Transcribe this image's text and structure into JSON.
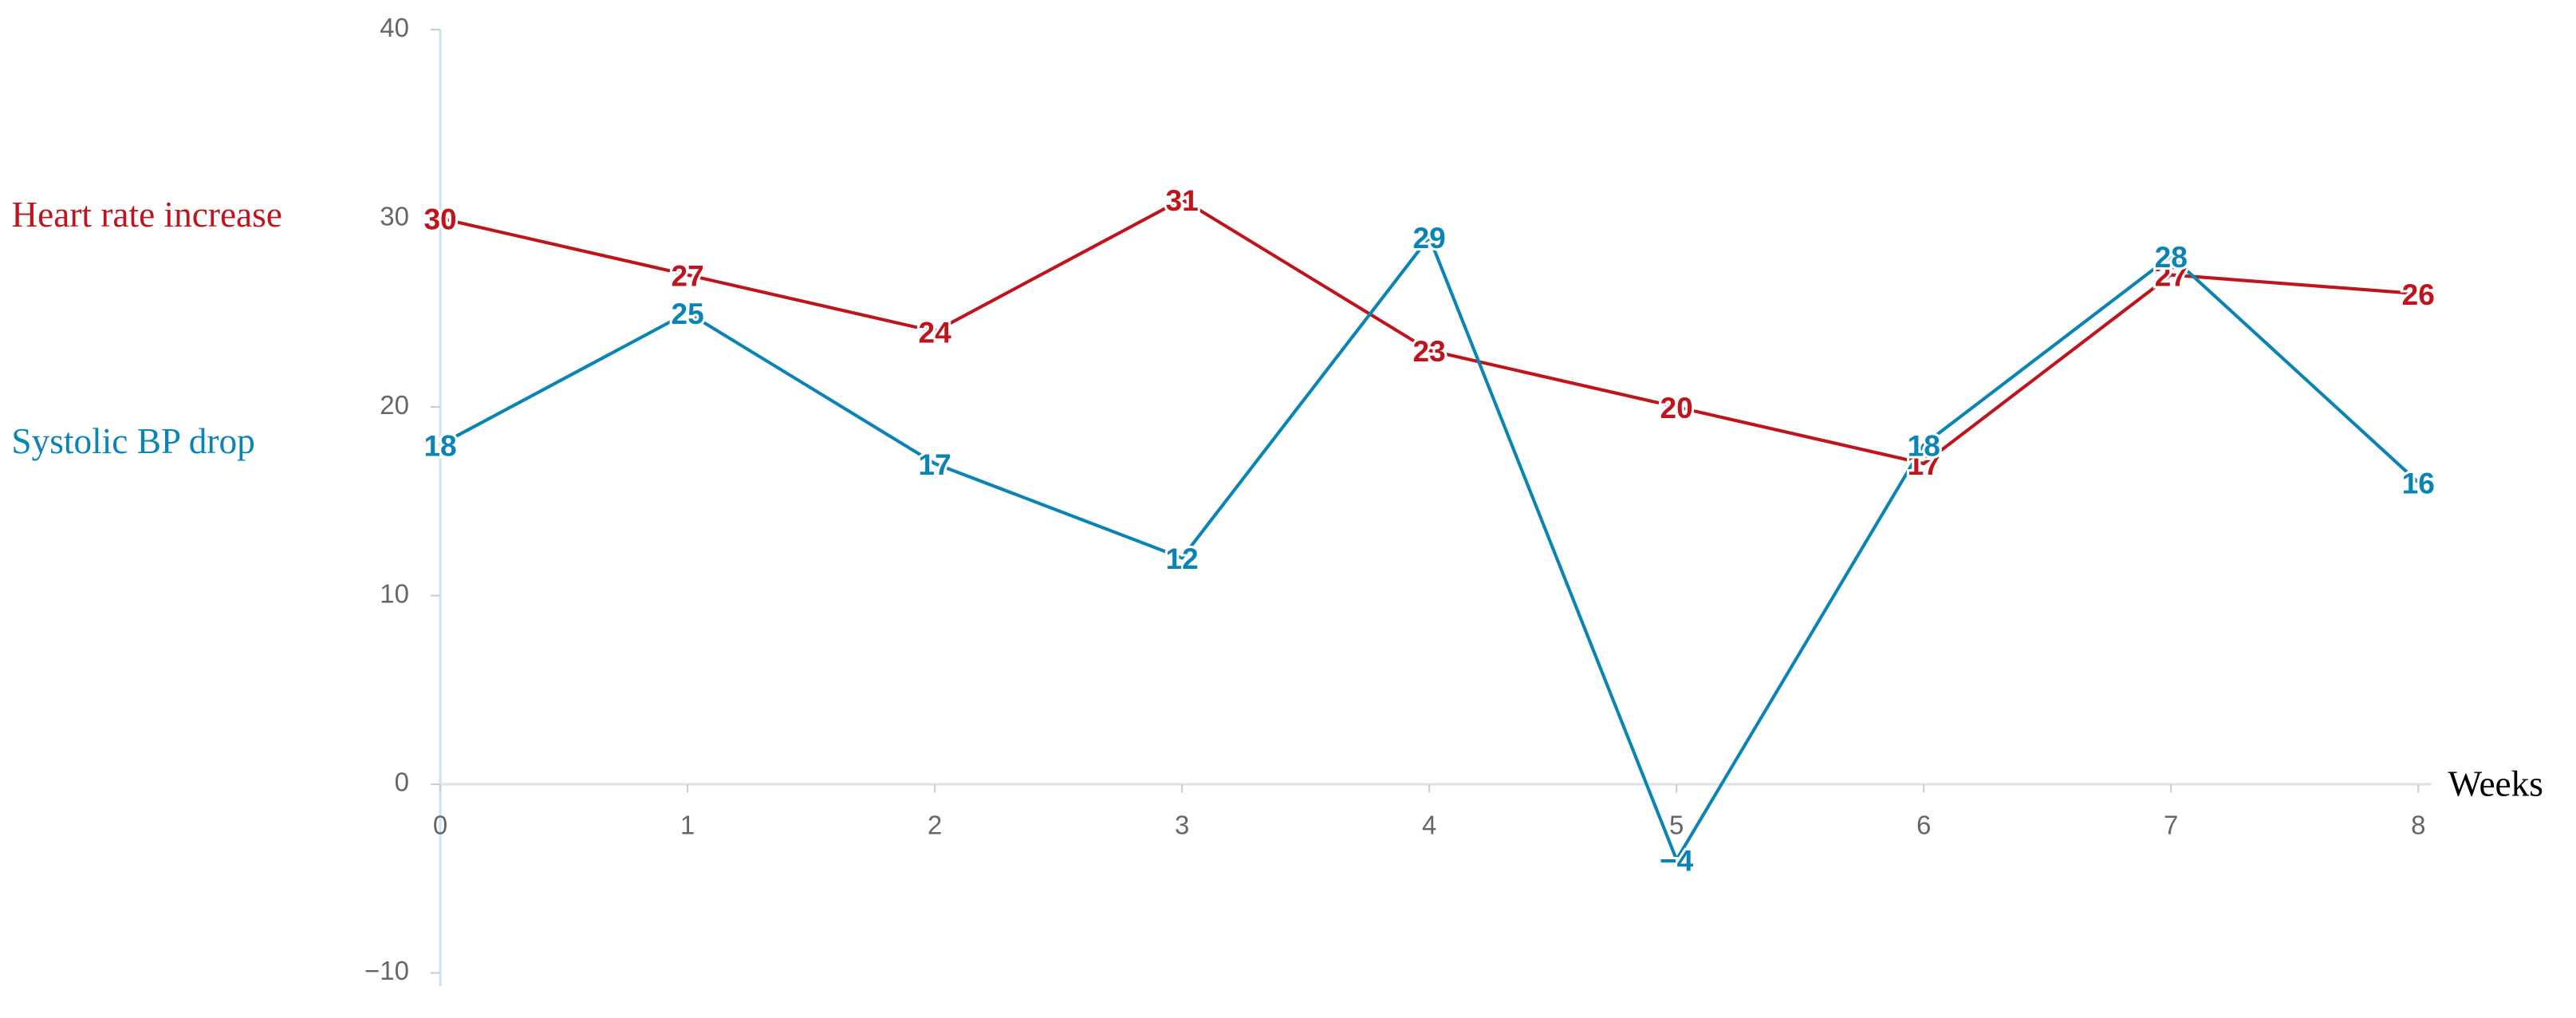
{
  "chart_data": {
    "type": "line",
    "x_label": "Weeks",
    "x": [
      0,
      1,
      2,
      3,
      4,
      5,
      6,
      7,
      8
    ],
    "xlim": [
      0,
      8
    ],
    "xticks": [
      0,
      1,
      2,
      3,
      4,
      5,
      6,
      7,
      8
    ],
    "ylim": [
      -10,
      40
    ],
    "yticks": [
      {
        "value": -10,
        "label": "−10"
      },
      0,
      10,
      20,
      30,
      40
    ],
    "series": [
      {
        "name": "Heart rate increase",
        "color": "#c0141c",
        "values": [
          30,
          27,
          24,
          31,
          23,
          20,
          17,
          27,
          26
        ]
      },
      {
        "name": "Systolic BP drop",
        "color": "#0a84b4",
        "values": [
          18,
          25,
          17,
          12,
          29,
          -4,
          18,
          28,
          16
        ],
        "value_labels": [
          "18",
          "25",
          "17",
          "12",
          "29",
          "−4",
          "18",
          "28",
          "16"
        ]
      }
    ]
  }
}
